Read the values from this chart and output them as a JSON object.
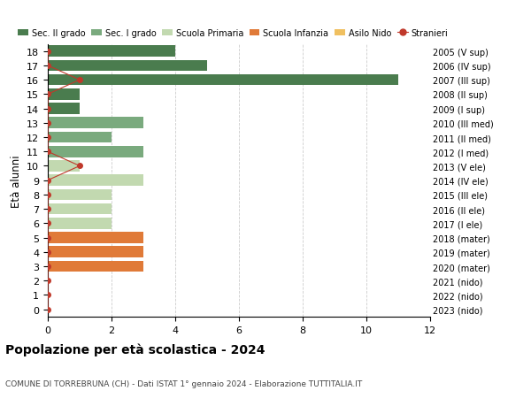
{
  "ages": [
    18,
    17,
    16,
    15,
    14,
    13,
    12,
    11,
    10,
    9,
    8,
    7,
    6,
    5,
    4,
    3,
    2,
    1,
    0
  ],
  "right_labels": [
    "2005 (V sup)",
    "2006 (IV sup)",
    "2007 (III sup)",
    "2008 (II sup)",
    "2009 (I sup)",
    "2010 (III med)",
    "2011 (II med)",
    "2012 (I med)",
    "2013 (V ele)",
    "2014 (IV ele)",
    "2015 (III ele)",
    "2016 (II ele)",
    "2017 (I ele)",
    "2018 (mater)",
    "2019 (mater)",
    "2020 (mater)",
    "2021 (nido)",
    "2022 (nido)",
    "2023 (nido)"
  ],
  "bar_values": [
    4,
    5,
    11,
    1,
    1,
    3,
    2,
    3,
    1,
    3,
    2,
    2,
    2,
    3,
    3,
    3,
    0,
    0,
    0
  ],
  "bar_colors": [
    "#4a7c4e",
    "#4a7c4e",
    "#4a7c4e",
    "#4a7c4e",
    "#4a7c4e",
    "#7aaa7e",
    "#7aaa7e",
    "#7aaa7e",
    "#c2d9b0",
    "#c2d9b0",
    "#c2d9b0",
    "#c2d9b0",
    "#c2d9b0",
    "#e07a38",
    "#e07a38",
    "#e07a38",
    "#f0c060",
    "#f0c060",
    "#f0c060"
  ],
  "stranieri_line_ages": [
    18,
    17,
    16,
    15,
    14,
    13,
    12,
    11,
    10,
    9,
    8,
    7,
    6,
    5,
    4,
    3,
    2,
    1,
    0
  ],
  "stranieri_line_values": [
    0,
    0,
    1,
    0,
    0,
    0,
    0,
    0,
    1,
    0,
    0,
    0,
    0,
    0,
    0,
    0,
    0,
    0,
    0
  ],
  "legend_labels": [
    "Sec. II grado",
    "Sec. I grado",
    "Scuola Primaria",
    "Scuola Infanzia",
    "Asilo Nido",
    "Stranieri"
  ],
  "legend_colors": [
    "#4a7c4e",
    "#7aaa7e",
    "#c2d9b0",
    "#e07a38",
    "#f0c060",
    "#c0392b"
  ],
  "title": "Popolazione per età scolastica - 2024",
  "subtitle": "COMUNE DI TORREBRUNA (CH) - Dati ISTAT 1° gennaio 2024 - Elaborazione TUTTITALIA.IT",
  "ylabel": "Età alunni",
  "xlim": [
    0,
    12
  ],
  "xticks": [
    0,
    2,
    4,
    6,
    8,
    10,
    12
  ],
  "stranieri_color": "#c0392b",
  "background_color": "#ffffff",
  "grid_color": "#cccccc"
}
